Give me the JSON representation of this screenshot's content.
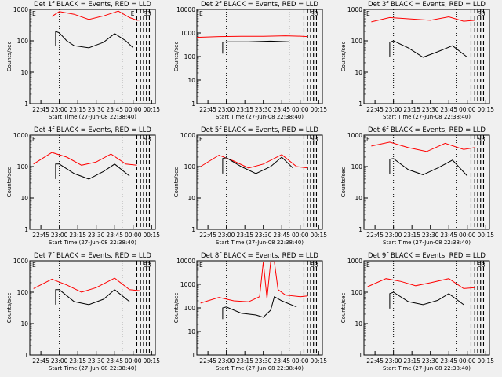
{
  "chart_data": [
    {
      "type": "line",
      "title": "Det 1f BLACK = Events, RED = LLD",
      "xlabel": "Start Time (27-Jun-08 22:38:40)",
      "ylabel": "Counts/sec",
      "yscale": "log",
      "ylim": [
        1,
        1000
      ],
      "xticks": [
        "22:45",
        "23:00",
        "23:15",
        "23:30",
        "23:45",
        "00:00",
        "00:15"
      ],
      "yticks": [
        "1",
        "10",
        "100",
        "1000"
      ],
      "markers": [
        "E",
        "E",
        "S3"
      ],
      "series": [
        {
          "color": "#ff0000",
          "x": [
            22.9,
            23.0,
            23.2,
            23.4,
            23.6,
            23.8,
            23.95,
            24.05,
            24.1
          ],
          "y": [
            600,
            850,
            700,
            480,
            620,
            880,
            550,
            450,
            460
          ]
        },
        {
          "color": "#000000",
          "x": [
            22.95,
            23.0,
            23.1,
            23.2,
            23.4,
            23.6,
            23.75,
            23.9,
            24.0
          ],
          "y": [
            200,
            180,
            100,
            70,
            60,
            90,
            170,
            100,
            60
          ]
        }
      ]
    },
    {
      "type": "line",
      "title": "Det 2f BLACK = Events, RED = LLD",
      "xlabel": "Start Time (27-Jun-08 22:38:40)",
      "ylabel": "Counts/sec",
      "yscale": "log",
      "ylim": [
        1,
        10000
      ],
      "xticks": [
        "22:45",
        "23:00",
        "23:15",
        "23:30",
        "23:45",
        "00:00",
        "00:15"
      ],
      "yticks": [
        "1",
        "10",
        "100",
        "1000",
        "10000"
      ],
      "markers": [
        "E",
        "S3"
      ],
      "series": [
        {
          "color": "#ff0000",
          "x": [
            22.6,
            22.9,
            23.2,
            23.5,
            23.8,
            24.0,
            24.1
          ],
          "y": [
            650,
            700,
            720,
            720,
            760,
            730,
            700
          ]
        },
        {
          "color": "#000000",
          "x": [
            22.95,
            23.0,
            23.3,
            23.6,
            23.85
          ],
          "y": [
            400,
            420,
            420,
            450,
            420
          ]
        }
      ]
    },
    {
      "type": "line",
      "title": "Det 3f BLACK = Events, RED = LLD",
      "xlabel": "Start Time (27-Jun-08 22:38:40)",
      "ylabel": "Counts/sec",
      "yscale": "log",
      "ylim": [
        1,
        1000
      ],
      "xticks": [
        "22:45",
        "23:00",
        "23:15",
        "23:30",
        "23:45",
        "00:00",
        "00:15"
      ],
      "yticks": [
        "1",
        "10",
        "100",
        "1000"
      ],
      "markers": [
        "E",
        "S3"
      ],
      "series": [
        {
          "color": "#ff0000",
          "x": [
            22.7,
            22.95,
            23.2,
            23.5,
            23.75,
            23.95,
            24.1
          ],
          "y": [
            400,
            550,
            500,
            450,
            580,
            420,
            450
          ]
        },
        {
          "color": "#000000",
          "x": [
            22.95,
            23.0,
            23.2,
            23.4,
            23.6,
            23.8,
            24.0
          ],
          "y": [
            90,
            100,
            60,
            30,
            45,
            70,
            30
          ]
        }
      ]
    },
    {
      "type": "line",
      "title": "Det 4f BLACK = Events, RED = LLD",
      "xlabel": "Start Time (27-Jun-08 22:38:40)",
      "ylabel": "Counts/sec",
      "yscale": "log",
      "ylim": [
        1,
        1000
      ],
      "xticks": [
        "22:45",
        "23:00",
        "23:15",
        "23:30",
        "23:45",
        "00:00",
        "00:15"
      ],
      "yticks": [
        "1",
        "10",
        "100",
        "1000"
      ],
      "markers": [
        "E",
        "S3"
      ],
      "series": [
        {
          "color": "#ff0000",
          "x": [
            22.65,
            22.9,
            23.1,
            23.3,
            23.5,
            23.7,
            23.9,
            24.05
          ],
          "y": [
            120,
            280,
            200,
            110,
            140,
            250,
            120,
            110
          ]
        },
        {
          "color": "#000000",
          "x": [
            22.95,
            23.0,
            23.2,
            23.4,
            23.6,
            23.75,
            23.95
          ],
          "y": [
            120,
            120,
            60,
            40,
            70,
            120,
            50
          ]
        }
      ]
    },
    {
      "type": "line",
      "title": "Det 5f BLACK = Events, RED = LLD",
      "xlabel": "Start Time (27-Jun-08 22:38:40)",
      "ylabel": "Counts/sec",
      "yscale": "log",
      "ylim": [
        1,
        1000
      ],
      "xticks": [
        "22:45",
        "23:00",
        "23:15",
        "23:30",
        "23:45",
        "00:00",
        "00:15"
      ],
      "yticks": [
        "1",
        "10",
        "100",
        "1000"
      ],
      "markers": [
        "E",
        "S3"
      ],
      "series": [
        {
          "color": "#ff0000",
          "x": [
            22.65,
            22.9,
            23.1,
            23.3,
            23.5,
            23.75,
            23.95,
            24.1
          ],
          "y": [
            100,
            230,
            150,
            90,
            120,
            240,
            100,
            90
          ]
        },
        {
          "color": "#000000",
          "x": [
            22.95,
            23.0,
            23.2,
            23.4,
            23.6,
            23.75,
            23.9
          ],
          "y": [
            180,
            190,
            100,
            60,
            100,
            200,
            90
          ]
        }
      ]
    },
    {
      "type": "line",
      "title": "Det 6f BLACK = Events, RED = LLD",
      "xlabel": "Start Time (27-Jun-08 22:38:40)",
      "ylabel": "Counts/sec",
      "yscale": "log",
      "ylim": [
        1,
        1000
      ],
      "xticks": [
        "22:45",
        "23:00",
        "23:15",
        "23:30",
        "23:45",
        "00:00",
        "00:15"
      ],
      "yticks": [
        "1",
        "10",
        "100",
        "1000"
      ],
      "markers": [
        "E",
        "S3"
      ],
      "series": [
        {
          "color": "#ff0000",
          "x": [
            22.7,
            22.95,
            23.2,
            23.45,
            23.7,
            23.95,
            24.1
          ],
          "y": [
            450,
            600,
            400,
            300,
            550,
            350,
            400
          ]
        },
        {
          "color": "#000000",
          "x": [
            22.95,
            23.0,
            23.2,
            23.4,
            23.6,
            23.8,
            24.0
          ],
          "y": [
            170,
            180,
            80,
            55,
            90,
            160,
            50
          ]
        }
      ]
    },
    {
      "type": "line",
      "title": "Det 7f BLACK = Events, RED = LLD",
      "xlabel": "Start Time (27-Jun-08 22:38:40)",
      "ylabel": "Counts/sec",
      "yscale": "log",
      "ylim": [
        1,
        1000
      ],
      "xticks": [
        "22:45",
        "23:00",
        "23:15",
        "23:30",
        "23:45",
        "00:00",
        "00:15"
      ],
      "yticks": [
        "1",
        "10",
        "100",
        "1000"
      ],
      "markers": [
        "E",
        "S3"
      ],
      "series": [
        {
          "color": "#ff0000",
          "x": [
            22.65,
            22.9,
            23.1,
            23.3,
            23.5,
            23.75,
            23.95,
            24.1
          ],
          "y": [
            130,
            260,
            170,
            100,
            140,
            280,
            120,
            110
          ]
        },
        {
          "color": "#000000",
          "x": [
            22.95,
            23.0,
            23.2,
            23.4,
            23.6,
            23.75,
            23.95
          ],
          "y": [
            120,
            120,
            50,
            40,
            60,
            120,
            50
          ]
        }
      ]
    },
    {
      "type": "line",
      "title": "Det 8f BLACK = Events, RED = LLD",
      "xlabel": "Start Time (27-Jun-08 22:38:40)",
      "ylabel": "Counts/sec",
      "yscale": "log",
      "ylim": [
        1,
        10000
      ],
      "xticks": [
        "22:45",
        "23:00",
        "23:15",
        "23:30",
        "23:45",
        "00:00",
        "00:15"
      ],
      "yticks": [
        "1",
        "10",
        "100",
        "1000",
        "10000"
      ],
      "markers": [
        "E",
        "S3"
      ],
      "series": [
        {
          "color": "#ff0000",
          "x": [
            22.65,
            22.9,
            23.1,
            23.3,
            23.45,
            23.5,
            23.55,
            23.6,
            23.65,
            23.7,
            23.8,
            24.0,
            24.1
          ],
          "y": [
            160,
            280,
            200,
            180,
            300,
            9000,
            250,
            9000,
            9000,
            600,
            350,
            300,
            320
          ]
        },
        {
          "color": "#000000",
          "x": [
            22.95,
            23.0,
            23.2,
            23.4,
            23.5,
            23.6,
            23.65,
            23.75,
            23.95
          ],
          "y": [
            100,
            110,
            60,
            50,
            40,
            80,
            300,
            200,
            110
          ]
        }
      ]
    },
    {
      "type": "line",
      "title": "Det 9f BLACK = Events, RED = LLD",
      "xlabel": "Start Time (27-Jun-08 22:38:40)",
      "ylabel": "Counts/sec",
      "yscale": "log",
      "ylim": [
        1,
        1000
      ],
      "xticks": [
        "22:45",
        "23:00",
        "23:15",
        "23:30",
        "23:45",
        "00:00",
        "00:15"
      ],
      "yticks": [
        "1",
        "10",
        "100",
        "1000"
      ],
      "markers": [
        "E",
        "S3"
      ],
      "series": [
        {
          "color": "#ff0000",
          "x": [
            22.65,
            22.9,
            23.1,
            23.3,
            23.5,
            23.75,
            23.95,
            24.1
          ],
          "y": [
            150,
            270,
            220,
            160,
            200,
            270,
            130,
            140
          ]
        },
        {
          "color": "#000000",
          "x": [
            22.95,
            23.0,
            23.2,
            23.4,
            23.6,
            23.75,
            23.95
          ],
          "y": [
            90,
            100,
            50,
            40,
            55,
            90,
            40
          ]
        }
      ]
    }
  ]
}
